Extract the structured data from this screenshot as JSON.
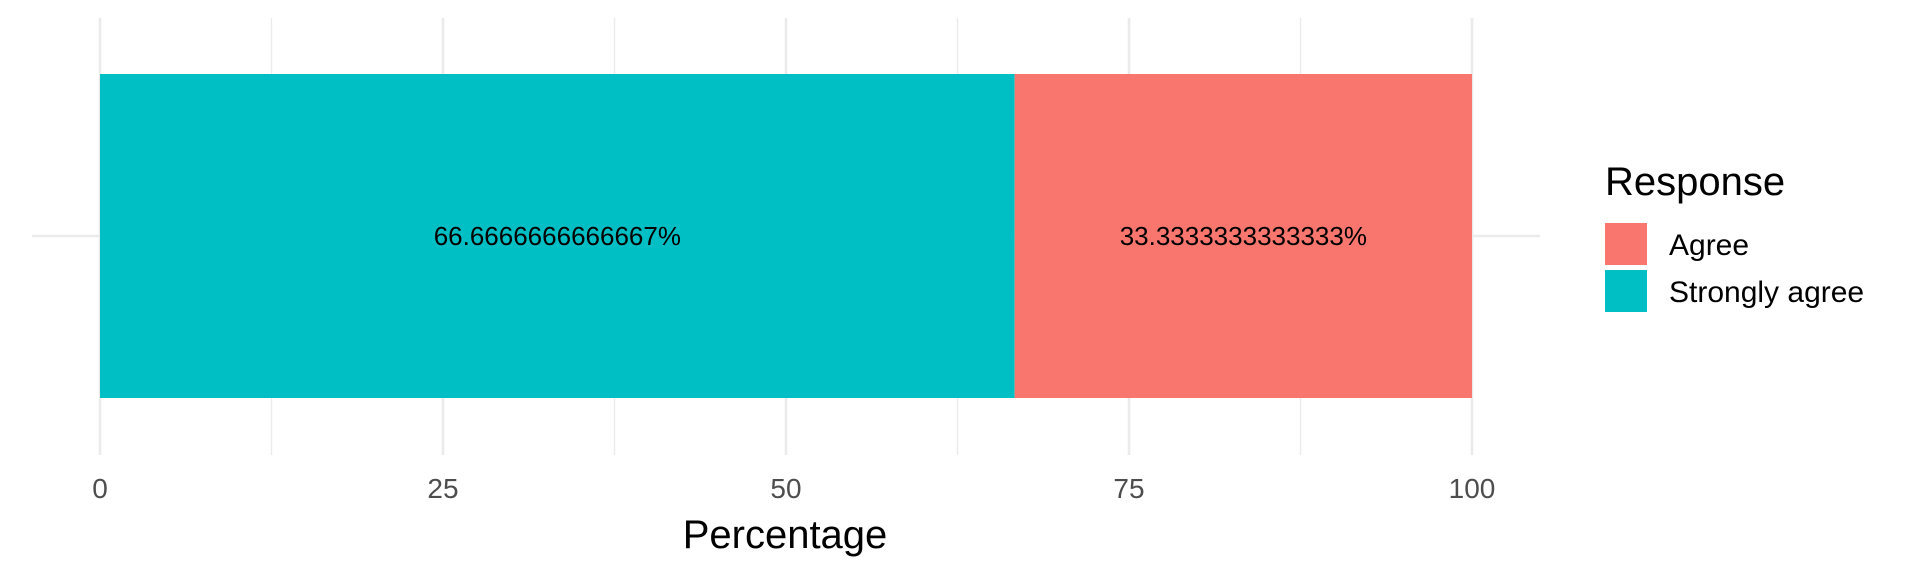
{
  "chart_data": {
    "type": "bar",
    "orientation": "horizontal",
    "stacked": true,
    "xlabel": "Percentage",
    "ylabel": "",
    "xlim": [
      0,
      100
    ],
    "x_ticks": [
      0,
      25,
      50,
      75,
      100
    ],
    "grid": true,
    "legend": {
      "title": "Response",
      "position": "right",
      "entries": [
        "Agree",
        "Strongly agree"
      ]
    },
    "series": [
      {
        "name": "Strongly agree",
        "value": 66.6666666666667,
        "label": "66.6666666666667%",
        "color": "#00BFC4"
      },
      {
        "name": "Agree",
        "value": 33.3333333333333,
        "label": "33.3333333333333%",
        "color": "#F8766D"
      }
    ]
  }
}
